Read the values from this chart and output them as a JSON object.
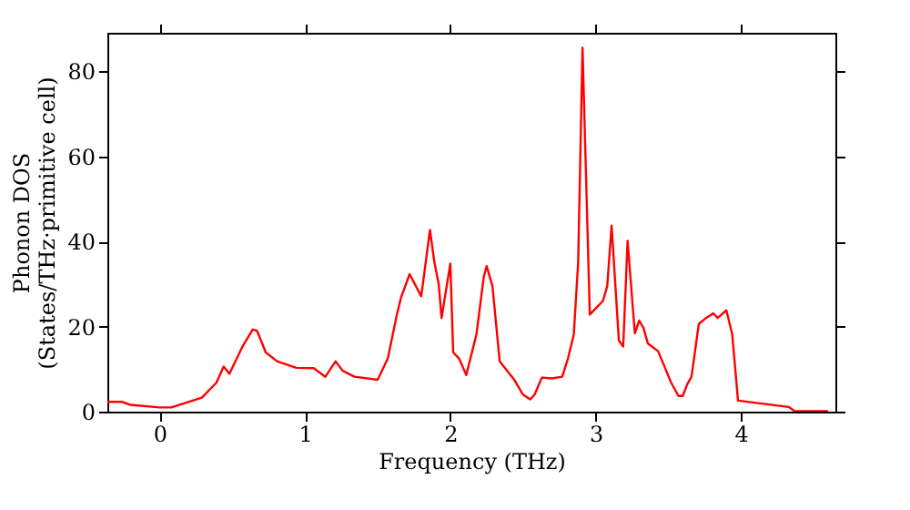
{
  "chart_data": {
    "type": "line",
    "xlabel": "Frequency (THz)",
    "ylabel": "Phonon DOS\n(States/THz·primitive cell)",
    "xlim": [
      -0.36,
      4.65
    ],
    "ylim": [
      0,
      89
    ],
    "xticks": [
      0,
      1,
      2,
      3,
      4
    ],
    "yticks": [
      0,
      20,
      40,
      60,
      80
    ],
    "grid": false,
    "marker": "none",
    "line_style": "solid",
    "series": [
      {
        "color": "#ff0000",
        "x": [
          -0.36,
          -0.26,
          -0.2,
          0,
          0.08,
          0.29,
          0.39,
          0.44,
          0.48,
          0.57,
          0.64,
          0.67,
          0.73,
          0.81,
          0.94,
          1.06,
          1.14,
          1.21,
          1.26,
          1.34,
          1.5,
          1.57,
          1.63,
          1.66,
          1.72,
          1.8,
          1.86,
          1.89,
          1.92,
          1.94,
          2.0,
          2.02,
          2.06,
          2.11,
          2.18,
          2.23,
          2.25,
          2.29,
          2.34,
          2.44,
          2.5,
          2.55,
          2.58,
          2.63,
          2.7,
          2.77,
          2.81,
          2.85,
          2.88,
          2.91,
          2.96,
          3.05,
          3.08,
          3.11,
          3.16,
          3.19,
          3.22,
          3.27,
          3.3,
          3.33,
          3.36,
          3.43,
          3.52,
          3.57,
          3.6,
          3.63,
          3.66,
          3.71,
          3.76,
          3.81,
          3.84,
          3.9,
          3.94,
          3.98,
          4.33,
          4.37,
          4.6
        ],
        "values": [
          2.3,
          2.3,
          1.6,
          1.0,
          1.0,
          3.3,
          6.8,
          10.6,
          8.9,
          15.3,
          19.3,
          19,
          13.9,
          11.8,
          10.3,
          10.2,
          8.2,
          11.8,
          9.6,
          8.2,
          7.5,
          12.5,
          22.4,
          26.7,
          32.3,
          27.1,
          42.7,
          35.2,
          30,
          22,
          34.8,
          13.9,
          12.5,
          8.6,
          18.2,
          31.6,
          34.2,
          29.5,
          11.8,
          7.5,
          4.0,
          2.9,
          4.0,
          8.0,
          7.8,
          8.2,
          12.5,
          18.2,
          35.2,
          85.5,
          22.8,
          26,
          29.5,
          43.7,
          16.7,
          15.3,
          40.1,
          18.4,
          21.4,
          19.6,
          16,
          14.2,
          6.8,
          3.7,
          3.7,
          6.4,
          8.2,
          20.6,
          22,
          23.1,
          22,
          23.8,
          18.2,
          2.6,
          1.1,
          0.1,
          0.1
        ]
      }
    ]
  }
}
